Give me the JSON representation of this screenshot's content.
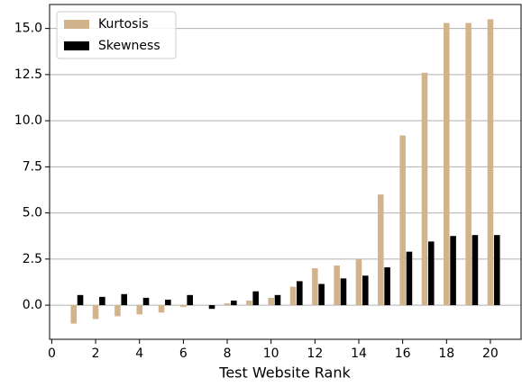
{
  "chart_data": {
    "type": "bar",
    "x_label": "Test Website Rank",
    "x": [
      1,
      2,
      3,
      4,
      5,
      6,
      7,
      8,
      9,
      10,
      11,
      12,
      13,
      14,
      15,
      16,
      17,
      18,
      19,
      20
    ],
    "series": [
      {
        "name": "Kurtosis",
        "color": "#d2b48c",
        "values": [
          -1.0,
          -0.75,
          -0.6,
          -0.5,
          -0.4,
          -0.1,
          0,
          0.1,
          0.25,
          0.4,
          1.0,
          2.0,
          2.15,
          2.5,
          6.0,
          9.2,
          12.6,
          15.3,
          15.3,
          15.5
        ]
      },
      {
        "name": "Skewness",
        "color": "#000000",
        "values": [
          0.55,
          0.45,
          0.6,
          0.4,
          0.3,
          0.55,
          -0.2,
          0.25,
          0.75,
          0.55,
          1.3,
          1.15,
          1.45,
          1.6,
          2.05,
          2.9,
          3.45,
          3.75,
          3.8,
          3.8
        ]
      }
    ],
    "xlim": [
      -0.1,
      21.4
    ],
    "xticks": [
      0,
      2,
      4,
      6,
      8,
      10,
      12,
      14,
      16,
      18,
      20
    ],
    "ylim": [
      -1.85,
      16.3
    ],
    "yticks": [
      {
        "value": 0,
        "label": "0.0"
      },
      {
        "value": 2.5,
        "label": "2.5"
      },
      {
        "value": 5,
        "label": "5.0"
      },
      {
        "value": 7.5,
        "label": "7.5"
      },
      {
        "value": 10,
        "label": "10.0"
      },
      {
        "value": 12.5,
        "label": "12.5"
      },
      {
        "value": 15,
        "label": "15.0"
      }
    ],
    "grid": true,
    "legend": "upper-left"
  }
}
